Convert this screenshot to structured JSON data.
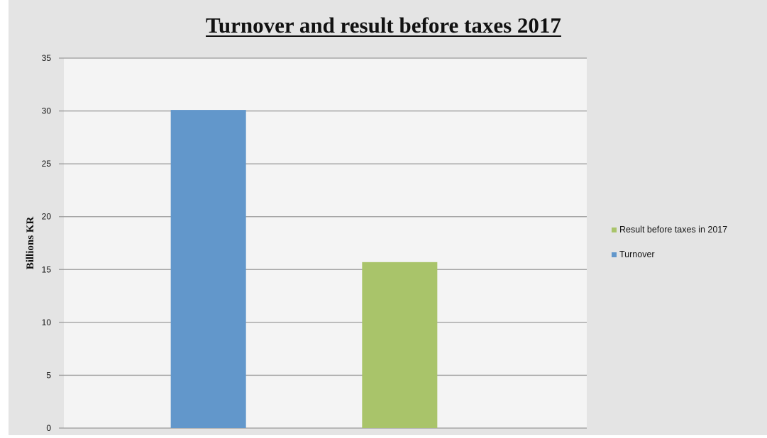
{
  "chart_data": {
    "type": "bar",
    "title": "Turnover and result before taxes 2017",
    "ylabel": "Billions KR",
    "xlabel": "",
    "ylim": [
      0,
      35
    ],
    "yticks": [
      0,
      5,
      10,
      15,
      20,
      25,
      30,
      35
    ],
    "grid": true,
    "legend_position": "right",
    "series": [
      {
        "name": "Turnover",
        "value": 30.1,
        "color": "#6297cb"
      },
      {
        "name": "Result before taxes in 2017",
        "value": 15.7,
        "color": "#a9c46a"
      }
    ],
    "legend_order": [
      "Result before taxes in 2017",
      "Turnover"
    ]
  },
  "colors": {
    "frame_background": "#e4e4e4",
    "plot_background": "#f4f4f4",
    "gridline": "#9a9a9a"
  }
}
